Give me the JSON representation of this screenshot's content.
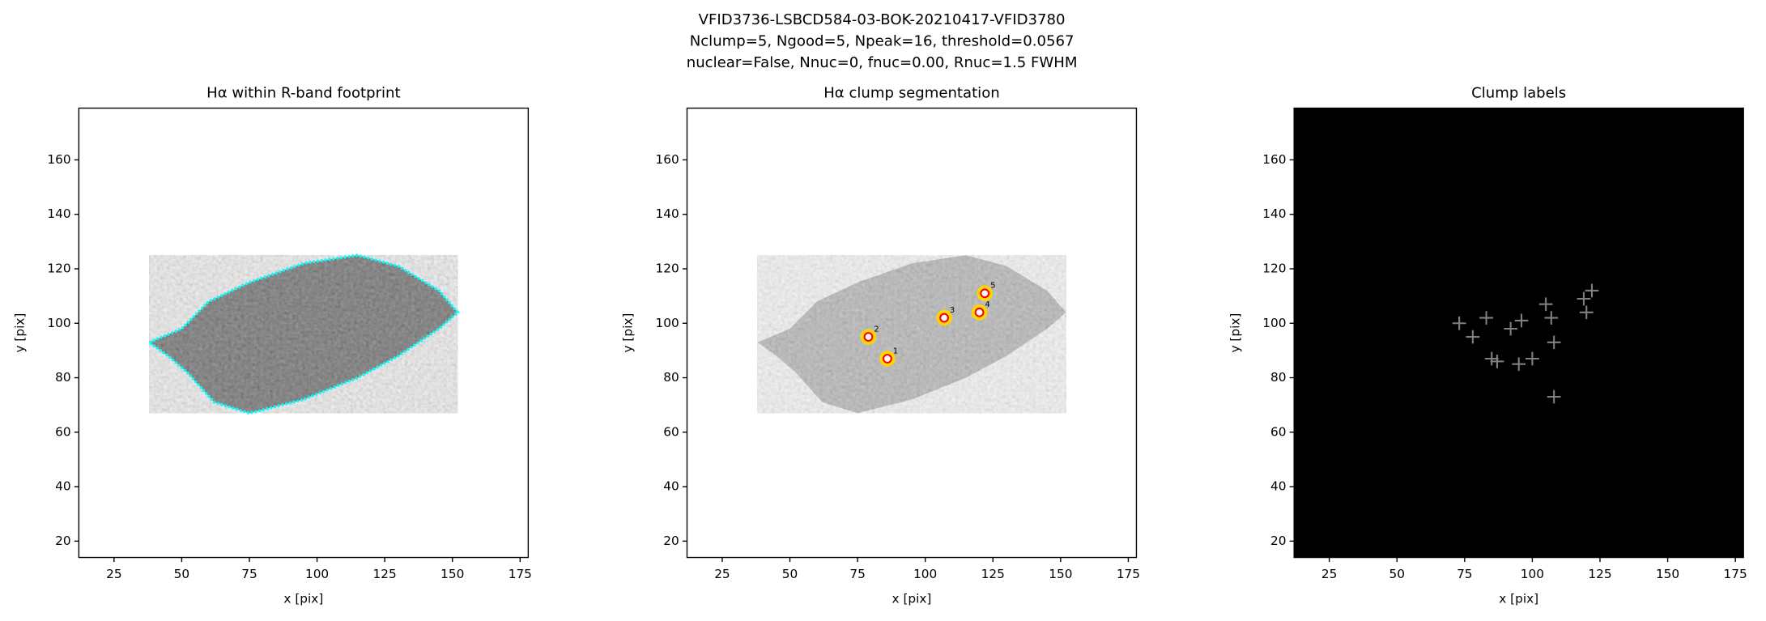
{
  "suptitle": [
    "VFID3736-LSBCD584-03-BOK-20210417-VFID3780",
    "Nclump=5, Ngood=5, Npeak=16, threshold=0.0567",
    "nuclear=False, Nnuc=0, fnuc=0.00, Rnuc=1.5 FWHM"
  ],
  "chart_data": [
    {
      "type": "image",
      "title": "Hα within R-band footprint",
      "xlabel": "x [pix]",
      "ylabel": "y [pix]",
      "xlim": [
        12,
        178
      ],
      "ylim": [
        14,
        179
      ],
      "xticks": [
        25,
        50,
        75,
        100,
        125,
        150,
        175
      ],
      "yticks": [
        20,
        40,
        60,
        80,
        100,
        120,
        140,
        160
      ],
      "background": "#ffffff",
      "outline": "#00ffff"
    },
    {
      "type": "clumps",
      "title": "Hα clump segmentation",
      "xlabel": "x [pix]",
      "ylabel": "y [pix]",
      "xlim": [
        12,
        178
      ],
      "ylim": [
        14,
        179
      ],
      "xticks": [
        25,
        50,
        75,
        100,
        125,
        150,
        175
      ],
      "yticks": [
        20,
        40,
        60,
        80,
        100,
        120,
        140,
        160
      ],
      "background": "#ffffff",
      "x": [
        86,
        79,
        107,
        120,
        122
      ],
      "values": [
        87,
        95,
        102,
        104,
        111
      ],
      "labels": [
        "1",
        "2",
        "3",
        "4",
        "5"
      ],
      "color": "#ff0000"
    },
    {
      "type": "peaks",
      "title": "Clump labels",
      "xlabel": "x [pix]",
      "ylabel": "y [pix]",
      "xlim": [
        12,
        178
      ],
      "ylim": [
        14,
        179
      ],
      "xticks": [
        25,
        50,
        75,
        100,
        125,
        150,
        175
      ],
      "yticks": [
        20,
        40,
        60,
        80,
        100,
        120,
        140,
        160
      ],
      "background": "#000000",
      "x": [
        73,
        83,
        78,
        92,
        96,
        100,
        95,
        85,
        87,
        105,
        108,
        108,
        107,
        119,
        120,
        122
      ],
      "values": [
        100,
        102,
        95,
        98,
        101,
        87,
        85,
        87,
        86,
        107,
        93,
        73,
        102,
        109,
        104,
        112
      ],
      "color": "#808080"
    }
  ]
}
